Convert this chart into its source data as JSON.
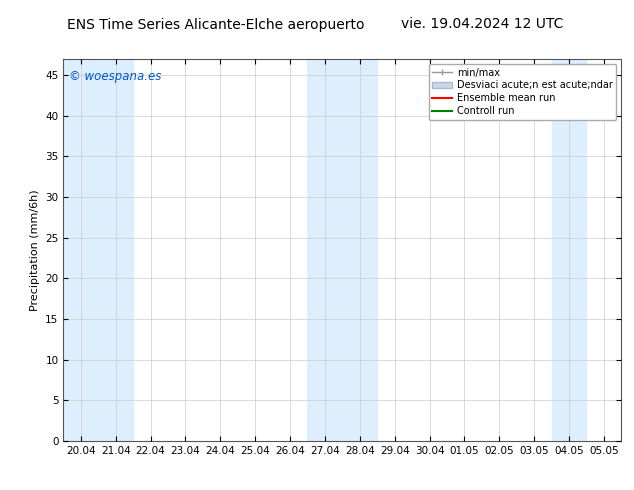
{
  "title_left": "ENS Time Series Alicante-Elche aeropuerto",
  "title_right": "vie. 19.04.2024 12 UTC",
  "ylabel": "Precipitation (mm/6h)",
  "watermark": "© woespana.es",
  "ylim": [
    0,
    47
  ],
  "yticks": [
    0,
    5,
    10,
    15,
    20,
    25,
    30,
    35,
    40,
    45
  ],
  "xtick_labels": [
    "20.04",
    "21.04",
    "22.04",
    "23.04",
    "24.04",
    "25.04",
    "26.04",
    "27.04",
    "28.04",
    "29.04",
    "30.04",
    "01.05",
    "02.05",
    "03.05",
    "04.05",
    "05.05"
  ],
  "bg_color": "#ffffff",
  "plot_bg_color": "#ffffff",
  "shaded_band_color": "#ddeeff",
  "shaded_columns": [
    0,
    1,
    7,
    8,
    14
  ],
  "legend_label_minmax": "min/max",
  "legend_label_std": "Desviaci acute;n est acute;ndar",
  "legend_label_ens": "Ensemble mean run",
  "legend_label_ctrl": "Controll run",
  "minmax_color": "#aabbcc",
  "std_color": "#c8d8e8",
  "ens_color": "#ff0000",
  "ctrl_color": "#008000",
  "title_fontsize": 10,
  "tick_fontsize": 7.5,
  "ylabel_fontsize": 8,
  "legend_fontsize": 7
}
